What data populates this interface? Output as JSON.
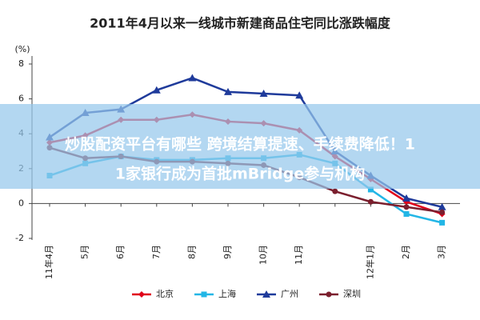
{
  "chart_data": {
    "type": "line",
    "title": "2011年4月以来一线城市新建商品住宅同比涨跌幅度",
    "y_label": "(%)",
    "categories": [
      "11年4月",
      "5月",
      "6月",
      "7月",
      "8月",
      "9月",
      "10月",
      "11月",
      null,
      "12年1月",
      "2月",
      "3月"
    ],
    "series": [
      {
        "name": "北京",
        "color": "#e0001b",
        "marker": "diamond",
        "values": [
          3.5,
          3.9,
          4.8,
          4.8,
          5.1,
          4.7,
          4.6,
          4.2,
          2.7,
          1.4,
          0.1,
          -0.6
        ]
      },
      {
        "name": "上海",
        "color": "#22b6e6",
        "marker": "square",
        "values": [
          1.6,
          2.3,
          2.7,
          2.5,
          2.5,
          2.6,
          2.6,
          2.8,
          2.3,
          0.8,
          -0.6,
          -1.1
        ]
      },
      {
        "name": "广州",
        "color": "#1f3b9b",
        "marker": "triangle",
        "values": [
          3.8,
          5.2,
          5.4,
          6.5,
          7.2,
          6.4,
          6.3,
          6.2,
          3.0,
          1.6,
          0.3,
          -0.2
        ]
      },
      {
        "name": "深圳",
        "color": "#7b1f2e",
        "marker": "circle",
        "values": [
          3.2,
          2.6,
          2.7,
          2.4,
          2.4,
          2.3,
          2.2,
          1.5,
          0.7,
          0.1,
          -0.2,
          -0.5
        ]
      }
    ],
    "ylim": [
      -2,
      8
    ],
    "yticks": [
      -2,
      0,
      2,
      4,
      6,
      8
    ],
    "legend": "bottom"
  },
  "banner": {
    "lines": [
      "炒股配资平台有哪些 跨境结算提速、手续费降低！1",
      "1家银行成为首批mBridge参与机构"
    ]
  }
}
